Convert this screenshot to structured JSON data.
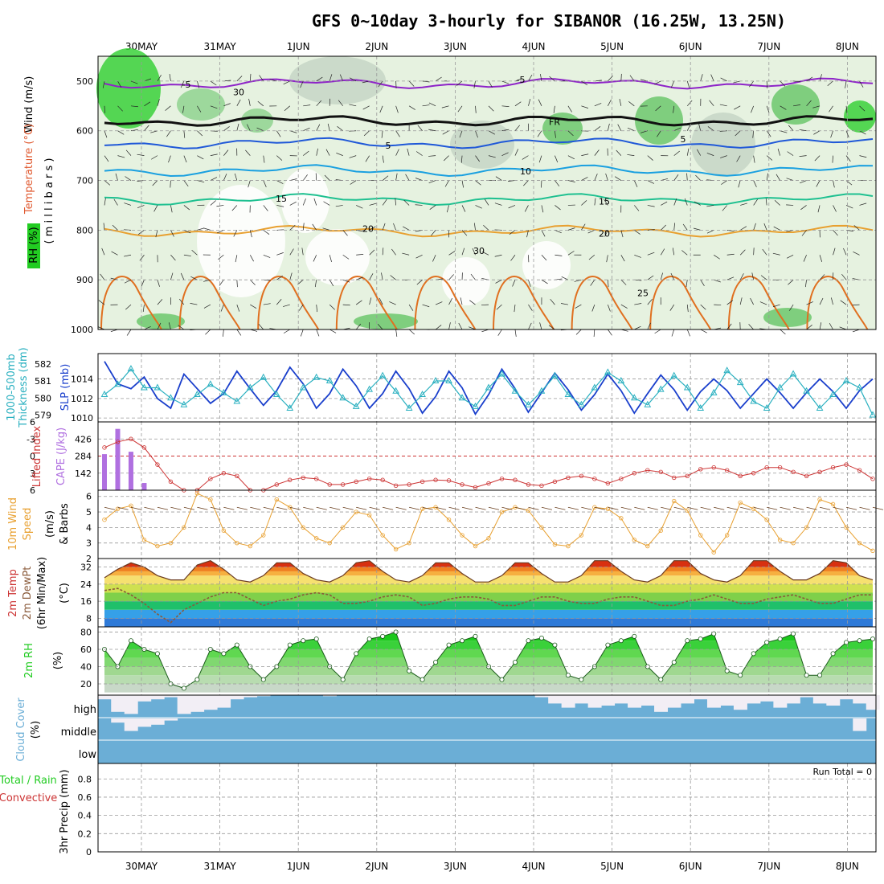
{
  "title": "GFS 0~10day 3-hourly for SIBANOR (16.25W, 13.25N)",
  "dates": [
    "30MAY",
    "31MAY",
    "1JUN",
    "2JUN",
    "3JUN",
    "4JUN",
    "5JUN",
    "6JUN",
    "7JUN",
    "8JUN"
  ],
  "colors": {
    "grid": "#999999",
    "rh_green": "#22cc22",
    "cloud": "#6baed6",
    "cape": "#b070e0",
    "li": "#cc3333",
    "slp": "#1a3fcc",
    "thick": "#2ab0c0",
    "wind": "#e8a030"
  },
  "labels": {
    "cross_section": {
      "wind": "Wind (m/s)",
      "temp": "Temperature (°C)",
      "rh": "RH (%)",
      "mb": "( m i l l i b a r s )"
    },
    "thickness": {
      "t1": "1000-500mb",
      "t2": "Thickness (dm)",
      "slp": "SLP (mb)"
    },
    "lifted": {
      "li": "Lifted Index",
      "cape": "CAPE (J/kg)"
    },
    "wind10": {
      "l1": "10m Wind",
      "l2": "Speed",
      "l3": "& Barbs",
      "unit": "(m/s)"
    },
    "temp2m": {
      "l1": "2m Temp",
      "l2": "2m DewPt",
      "l3": "(6hr Min/Max)",
      "unit": "(°C)"
    },
    "rh2m": {
      "l1": "2m RH",
      "unit": "(%)"
    },
    "cloud": {
      "l1": "Cloud Cover",
      "unit": "(%)",
      "high": "high",
      "middle": "middle",
      "low": "low"
    },
    "precip": {
      "l1": "Total / Rain",
      "l2": "Convective",
      "l3": "3hr Precip (mm)",
      "run_total": "Run Total = 0"
    }
  },
  "chart_data": [
    {
      "type": "contour",
      "panel": "cross-section",
      "ylabel": "millibars",
      "y_ticks": [
        500,
        600,
        700,
        800,
        900,
        1000
      ],
      "contour_labels": [
        {
          "text": "-5",
          "p": 505
        },
        {
          "text": "-5",
          "p": 495
        },
        {
          "text": "FR",
          "p": 580
        },
        {
          "text": "5",
          "p": 628
        },
        {
          "text": "5",
          "p": 615
        },
        {
          "text": "10",
          "p": 680
        },
        {
          "text": "15",
          "p": 740
        },
        {
          "text": "15",
          "p": 735
        },
        {
          "text": "20",
          "p": 805
        },
        {
          "text": "20",
          "p": 795
        },
        {
          "text": "25",
          "p": 925
        },
        {
          "text": "30",
          "p": 520
        },
        {
          "text": "30",
          "p": 840
        }
      ],
      "levels": [
        {
          "label": "-5",
          "p": 505
        },
        {
          "label": "FR",
          "p": 580
        },
        {
          "label": "5",
          "p": 625
        },
        {
          "label": "10",
          "p": 680
        },
        {
          "label": "15",
          "p": 738
        },
        {
          "label": "20",
          "p": 802
        }
      ]
    },
    {
      "type": "line",
      "panel": "thickness-slp",
      "y_ticks_left": [
        579,
        580,
        581,
        582
      ],
      "y_ticks_right": [
        1010,
        1012,
        1014
      ],
      "series": [
        {
          "name": "SLP (mb)",
          "axis": "right",
          "values": [
            1015.8,
            1013.5,
            1013.0,
            1014.2,
            1012.0,
            1011.0,
            1014.5,
            1013.0,
            1011.5,
            1012.5,
            1014.8,
            1013.0,
            1011.3,
            1012.8,
            1015.2,
            1013.5,
            1011.0,
            1012.5,
            1015.0,
            1013.3,
            1011.0,
            1012.5,
            1014.8,
            1013.0,
            1010.5,
            1012.2,
            1014.8,
            1013.1,
            1010.4,
            1012.4,
            1015.0,
            1013.0,
            1010.6,
            1012.6,
            1014.6,
            1012.9,
            1010.8,
            1012.4,
            1014.5,
            1012.8,
            1010.5,
            1012.5,
            1014.4,
            1012.9,
            1010.8,
            1012.7,
            1014.0,
            1012.8,
            1011.0,
            1012.5,
            1014.0,
            1012.6,
            1011.0,
            1012.6,
            1014.0,
            1012.7,
            1011.0,
            1012.8,
            1014.0
          ]
        },
        {
          "name": "1000-500mb Thickness (dm)",
          "axis": "left",
          "values": [
            580.2,
            580.8,
            581.7,
            580.6,
            580.6,
            580.0,
            579.6,
            580.2,
            580.8,
            580.3,
            579.8,
            580.6,
            581.2,
            580.2,
            579.4,
            580.6,
            581.2,
            581.0,
            580.0,
            579.5,
            580.5,
            581.3,
            580.4,
            579.4,
            580.2,
            581.0,
            581.0,
            580.0,
            579.5,
            580.6,
            581.4,
            580.4,
            579.6,
            580.4,
            581.3,
            580.2,
            579.6,
            580.6,
            581.5,
            581.0,
            580.0,
            579.6,
            580.5,
            581.3,
            580.6,
            579.4,
            580.3,
            581.6,
            580.9,
            579.8,
            579.4,
            580.6,
            581.4,
            580.4,
            579.4,
            580.2,
            581.0,
            580.6,
            579.0
          ]
        }
      ]
    },
    {
      "type": "bar+line",
      "panel": "lifted-cape",
      "cape_ticks": [
        142,
        284,
        426
      ],
      "li_ticks": [
        -3,
        0,
        3,
        6
      ],
      "cape": [
        300,
        510,
        320,
        60,
        0,
        0,
        0,
        0,
        0,
        0
      ],
      "lifted_index": [
        -1.5,
        -2.5,
        -3.0,
        -1.5,
        1.5,
        4.5,
        6.0,
        6.0,
        4.0,
        3.0,
        3.5,
        6.0,
        6.0,
        5.0,
        4.2,
        3.8,
        4.0,
        5.0,
        5.0,
        4.5,
        4.0,
        4.2,
        5.2,
        5.0,
        4.5,
        4.2,
        4.3,
        5.0,
        5.5,
        4.8,
        4.0,
        4.2,
        5.0,
        5.2,
        4.5,
        3.8,
        3.5,
        4.0,
        4.8,
        4.0,
        3.0,
        2.5,
        2.8,
        3.8,
        3.5,
        2.3,
        2.0,
        2.5,
        3.5,
        3.0,
        2.0,
        2.0,
        2.8,
        3.5,
        2.8,
        2.0,
        1.5,
        2.5,
        4.0
      ]
    },
    {
      "type": "line",
      "panel": "wind10m",
      "y_ticks": [
        2,
        3,
        4,
        5,
        6
      ],
      "ylabel": "m/s",
      "values": [
        4.5,
        5.2,
        5.4,
        3.2,
        2.8,
        3.0,
        4.0,
        6.2,
        5.8,
        3.8,
        3.0,
        2.8,
        3.5,
        5.8,
        5.3,
        4.0,
        3.3,
        3.0,
        4.0,
        5.0,
        4.8,
        3.5,
        2.6,
        3.0,
        5.2,
        5.3,
        4.5,
        3.5,
        2.8,
        3.3,
        5.0,
        5.3,
        5.1,
        4.0,
        2.9,
        2.8,
        3.5,
        5.3,
        5.2,
        4.6,
        3.2,
        2.8,
        3.8,
        5.7,
        5.1,
        3.5,
        2.4,
        3.5,
        5.6,
        5.2,
        4.5,
        3.2,
        3.0,
        4.0,
        5.8,
        5.5,
        4.0,
        3.0,
        2.5
      ]
    },
    {
      "type": "area",
      "panel": "temp2m",
      "y_ticks": [
        8,
        16,
        24,
        32
      ],
      "ylabel": "°C",
      "temp": [
        27,
        31,
        34,
        32,
        28,
        26,
        26,
        33,
        35,
        31,
        26,
        25,
        28,
        34,
        34,
        29,
        26,
        25,
        28,
        34,
        35,
        30,
        26,
        25,
        28,
        34,
        34,
        29,
        25,
        25,
        28,
        34,
        34,
        29,
        25,
        25,
        28,
        35,
        35,
        30,
        26,
        25,
        28,
        35,
        35,
        29,
        26,
        25,
        28,
        35,
        35,
        30,
        26,
        26,
        29,
        35,
        34,
        28,
        26
      ],
      "dewpt": [
        21,
        22,
        19,
        15,
        10,
        6,
        12,
        15,
        18,
        20,
        20,
        17,
        14,
        16,
        17,
        19,
        20,
        19,
        15,
        15,
        16,
        18,
        19,
        18,
        14,
        15,
        17,
        18,
        18,
        17,
        14,
        14,
        16,
        18,
        18,
        16,
        15,
        15,
        17,
        18,
        18,
        16,
        14,
        14,
        16,
        17,
        19,
        17,
        15,
        15,
        17,
        18,
        19,
        17,
        15,
        15,
        17,
        19,
        19
      ]
    },
    {
      "type": "area",
      "panel": "rh2m",
      "y_ticks": [
        20,
        40,
        60,
        80
      ],
      "ylabel": "%",
      "values": [
        60,
        40,
        70,
        60,
        55,
        20,
        15,
        25,
        60,
        55,
        65,
        40,
        25,
        40,
        65,
        70,
        72,
        40,
        25,
        55,
        72,
        75,
        80,
        35,
        25,
        45,
        65,
        70,
        75,
        40,
        25,
        45,
        70,
        73,
        65,
        30,
        25,
        40,
        65,
        70,
        75,
        40,
        25,
        45,
        70,
        72,
        78,
        35,
        30,
        55,
        68,
        72,
        78,
        30,
        30,
        55,
        68,
        70,
        72
      ]
    },
    {
      "type": "area",
      "panel": "cloud",
      "categories": [
        "high",
        "middle",
        "low"
      ],
      "high": [
        80,
        20,
        10,
        70,
        80,
        90,
        10,
        20,
        30,
        40,
        80,
        90,
        95,
        100,
        100,
        100,
        100,
        95,
        100,
        100,
        100,
        100,
        100,
        100,
        100,
        100,
        100,
        100,
        100,
        100,
        100,
        100,
        100,
        90,
        60,
        40,
        60,
        40,
        50,
        60,
        40,
        50,
        20,
        40,
        60,
        80,
        40,
        50,
        30,
        60,
        70,
        40,
        60,
        90,
        60,
        50,
        80,
        60,
        30
      ],
      "middle": [
        100,
        80,
        40,
        60,
        70,
        90,
        100,
        100,
        100,
        100,
        100,
        100,
        100,
        100,
        100,
        100,
        100,
        100,
        100,
        100,
        100,
        100,
        100,
        100,
        100,
        100,
        100,
        100,
        100,
        100,
        100,
        100,
        100,
        100,
        100,
        100,
        100,
        100,
        100,
        100,
        100,
        100,
        100,
        100,
        100,
        100,
        100,
        100,
        100,
        100,
        100,
        100,
        100,
        100,
        100,
        100,
        100,
        40,
        100
      ]
    },
    {
      "type": "bar",
      "panel": "precip",
      "y_ticks": [
        0,
        0.2,
        0.4,
        0.6,
        0.8
      ],
      "ylabel": "mm",
      "run_total": 0
    }
  ]
}
